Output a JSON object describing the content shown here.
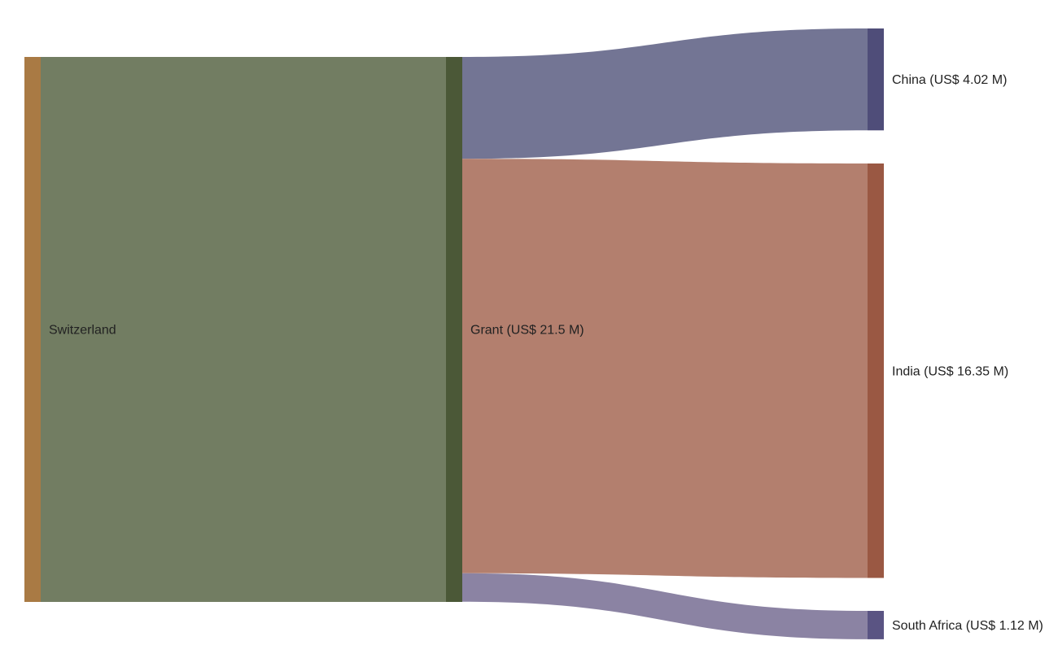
{
  "chart_data": {
    "type": "sankey",
    "nodes": [
      {
        "id": "switzerland",
        "label": "Switzerland",
        "value": 21.5,
        "color": "#a97a44"
      },
      {
        "id": "grant",
        "label": "Grant (US$ 21.5 M)",
        "value": 21.5,
        "color": "#4b5837"
      },
      {
        "id": "china",
        "label": "China (US$ 4.02 M)",
        "value": 4.02,
        "color": "#4f4d79"
      },
      {
        "id": "india",
        "label": "India (US$ 16.35 M)",
        "value": 16.35,
        "color": "#9a5843"
      },
      {
        "id": "south_africa",
        "label": "South Africa (US$ 1.12 M)",
        "value": 1.12,
        "color": "#5a5483"
      }
    ],
    "links": [
      {
        "source": "switzerland",
        "target": "grant",
        "value": 21.5,
        "color": "#727d62"
      },
      {
        "source": "grant",
        "target": "china",
        "value": 4.02,
        "color": "#737594"
      },
      {
        "source": "grant",
        "target": "india",
        "value": 16.35,
        "color": "#b37f6e"
      },
      {
        "source": "grant",
        "target": "south_africa",
        "value": 1.12,
        "color": "#8b83a3"
      }
    ]
  }
}
